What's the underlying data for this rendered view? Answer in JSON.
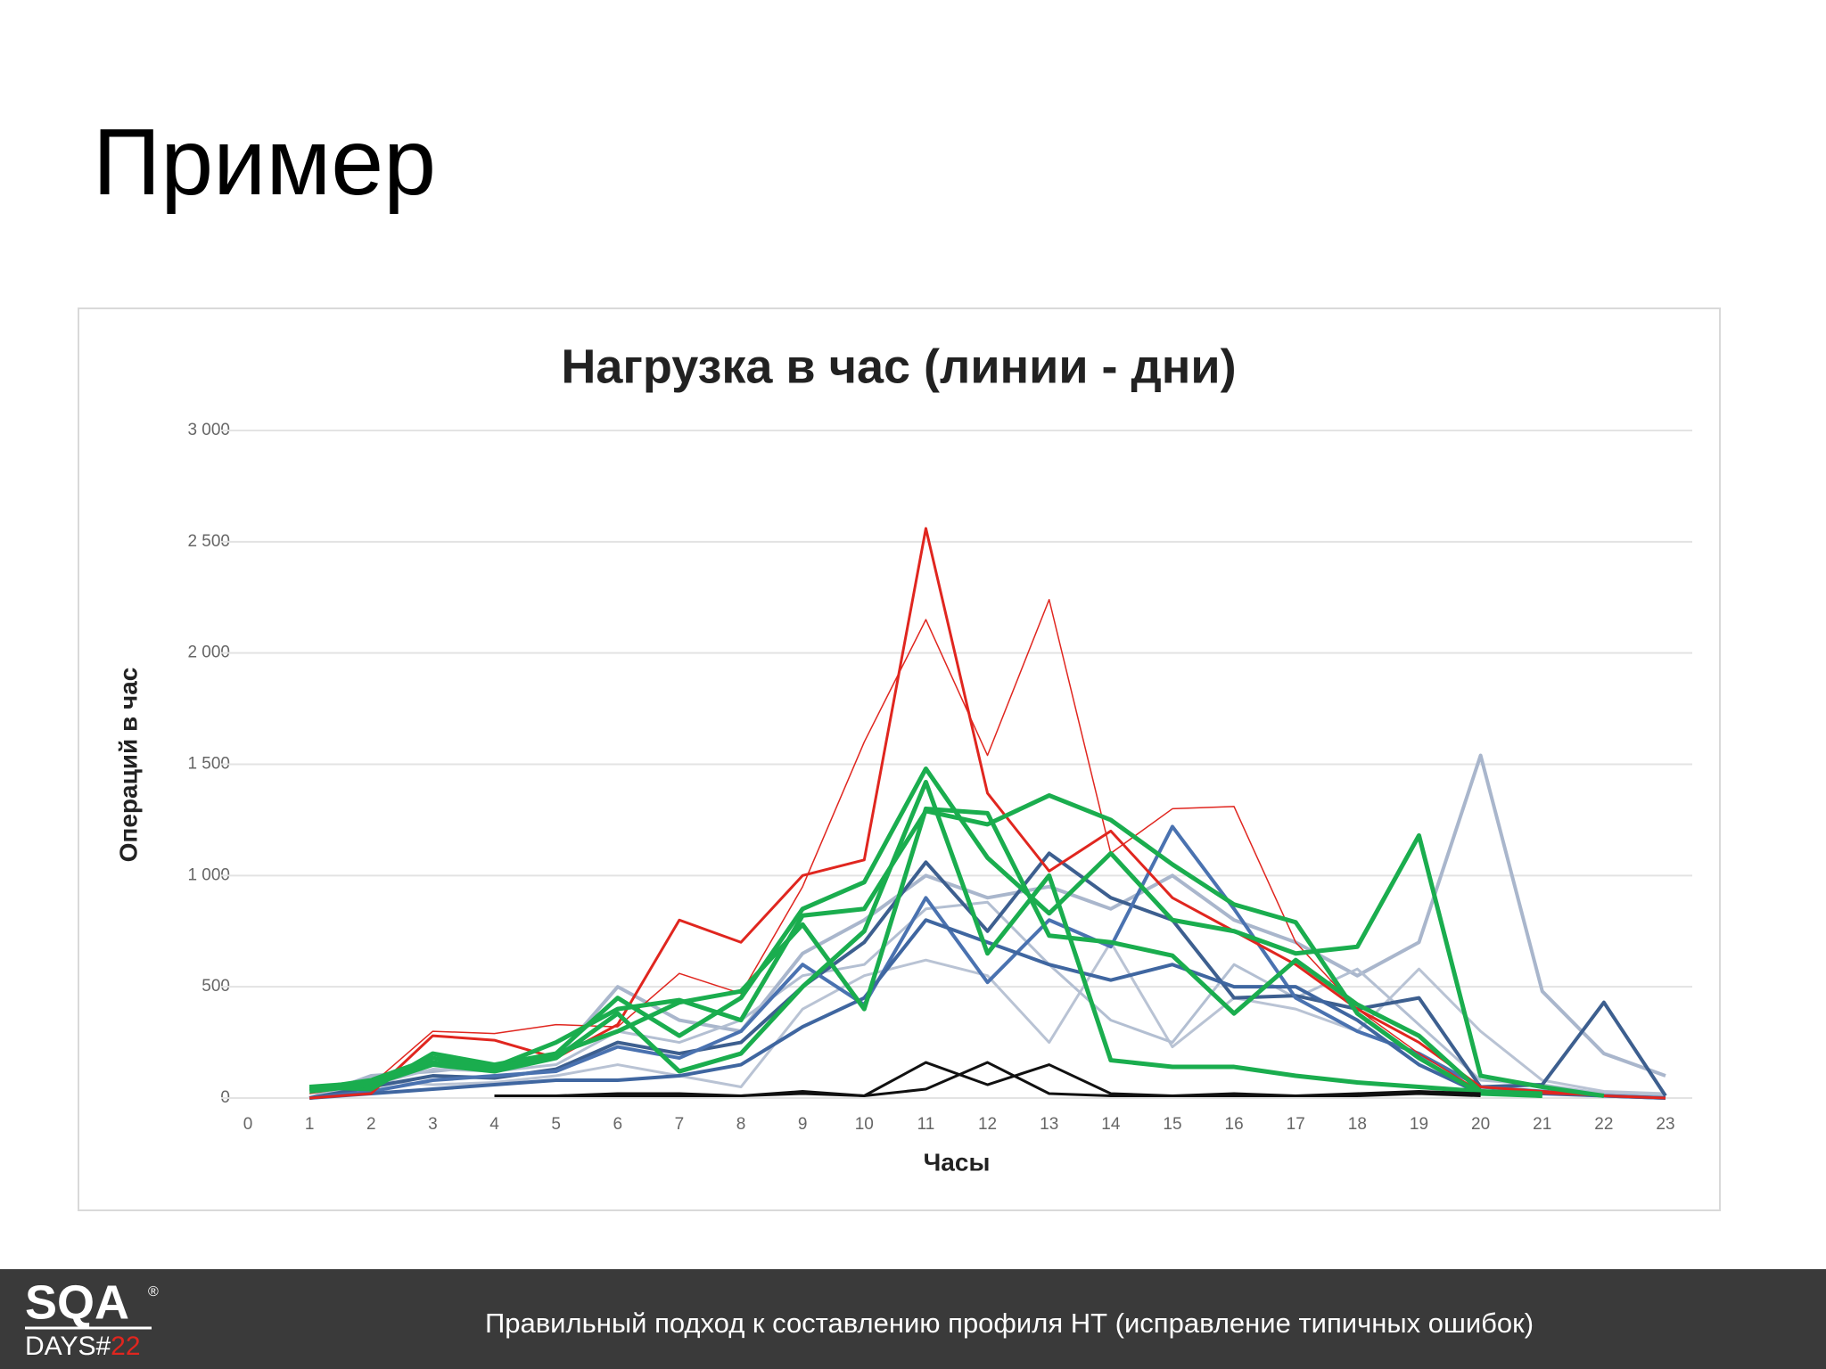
{
  "slide_title": "Пример",
  "footer": {
    "text": "Правильный подход к составлению профиля НТ (исправление типичных ошибок)"
  },
  "logo": {
    "top": "SQA",
    "bottom": "DAYS#",
    "number": "22",
    "mark": "®"
  },
  "chart_data": {
    "type": "line",
    "title": "Нагрузка в час (линии - дни)",
    "x_label": "Часы",
    "y_label": "Операций в час",
    "x": [
      0,
      1,
      2,
      3,
      4,
      5,
      6,
      7,
      8,
      9,
      10,
      11,
      12,
      13,
      14,
      15,
      16,
      17,
      18,
      19,
      20,
      21,
      22,
      23
    ],
    "xlim": [
      0,
      23
    ],
    "xticks": [
      0,
      1,
      2,
      3,
      4,
      5,
      6,
      7,
      8,
      9,
      10,
      11,
      12,
      13,
      14,
      15,
      16,
      17,
      18,
      19,
      20,
      21,
      22,
      23
    ],
    "ylim": [
      0,
      3000
    ],
    "yticks": [
      0,
      500,
      {
        "value": 1000,
        "label": "1 000"
      },
      {
        "value": 1500,
        "label": "1 500"
      },
      {
        "value": 2000,
        "label": "2 000"
      },
      {
        "value": 2500,
        "label": "2 500"
      },
      {
        "value": 3000,
        "label": "3 000"
      }
    ],
    "grid": true,
    "series": [
      {
        "color": "#a9b6cc",
        "line_width": 4,
        "values": [
          null,
          0,
          100,
          120,
          150,
          180,
          500,
          350,
          300,
          650,
          800,
          1000,
          900,
          950,
          850,
          1000,
          800,
          700,
          550,
          700,
          1540,
          480,
          200,
          100
        ]
      },
      {
        "color": "#b9c3d4",
        "line_width": 3,
        "values": [
          null,
          0,
          80,
          60,
          70,
          100,
          150,
          100,
          50,
          400,
          550,
          620,
          550,
          250,
          700,
          230,
          450,
          400,
          300,
          580,
          300,
          80,
          30,
          20
        ]
      },
      {
        "color": "#b3bfd2",
        "line_width": 3,
        "values": [
          null,
          0,
          60,
          130,
          120,
          150,
          300,
          250,
          350,
          550,
          600,
          850,
          880,
          600,
          350,
          250,
          600,
          450,
          580,
          330,
          80,
          60,
          20,
          10
        ]
      },
      {
        "color": "#3d5f8f",
        "line_width": 4,
        "values": [
          null,
          0,
          50,
          100,
          90,
          130,
          250,
          200,
          250,
          500,
          700,
          1060,
          750,
          1100,
          900,
          800,
          450,
          460,
          400,
          450,
          50,
          60,
          430,
          10
        ]
      },
      {
        "color": "#4a72b0",
        "line_width": 4,
        "values": [
          null,
          0,
          30,
          80,
          100,
          120,
          230,
          180,
          300,
          600,
          420,
          900,
          520,
          800,
          680,
          1220,
          850,
          450,
          300,
          200,
          50,
          30,
          10,
          0
        ]
      },
      {
        "color": "#3f66a0",
        "line_width": 4,
        "values": [
          null,
          0,
          20,
          40,
          60,
          80,
          80,
          100,
          150,
          320,
          450,
          800,
          700,
          600,
          530,
          600,
          500,
          500,
          350,
          150,
          20,
          20,
          10,
          0
        ]
      },
      {
        "color": "#e0261f",
        "line_width": 1.5,
        "values": [
          null,
          20,
          60,
          300,
          290,
          330,
          320,
          560,
          470,
          950,
          1600,
          2150,
          1540,
          2240,
          1100,
          1300,
          1310,
          700,
          400,
          200,
          30,
          20,
          10,
          0
        ]
      },
      {
        "color": "#e0261f",
        "line_width": 3,
        "values": [
          null,
          0,
          20,
          280,
          260,
          180,
          330,
          800,
          700,
          1000,
          1070,
          2560,
          1370,
          1020,
          1200,
          900,
          750,
          600,
          400,
          250,
          50,
          30,
          10,
          0
        ]
      },
      {
        "color": "#1aad4e",
        "line_width": 5,
        "values": [
          null,
          50,
          40,
          200,
          150,
          200,
          450,
          280,
          450,
          850,
          970,
          1480,
          1080,
          830,
          1100,
          800,
          750,
          650,
          680,
          1180,
          100,
          50,
          10,
          null
        ]
      },
      {
        "color": "#1aad4e",
        "line_width": 5,
        "values": [
          null,
          40,
          80,
          180,
          140,
          250,
          400,
          440,
          350,
          820,
          850,
          1290,
          1230,
          1360,
          1250,
          1050,
          870,
          790,
          380,
          180,
          20,
          10,
          null,
          null
        ]
      },
      {
        "color": "#1aad4e",
        "line_width": 5,
        "values": [
          null,
          30,
          60,
          150,
          120,
          180,
          380,
          120,
          200,
          500,
          750,
          1420,
          650,
          1000,
          170,
          140,
          140,
          100,
          70,
          50,
          30,
          20,
          null,
          null
        ]
      },
      {
        "color": "#1aad4e",
        "line_width": 5,
        "values": [
          null,
          50,
          70,
          160,
          130,
          200,
          300,
          430,
          480,
          780,
          400,
          1300,
          1280,
          730,
          700,
          640,
          380,
          620,
          420,
          280,
          30,
          10,
          null,
          null
        ]
      },
      {
        "color": "#111111",
        "line_width": 3,
        "values": [
          null,
          null,
          null,
          null,
          10,
          10,
          20,
          20,
          10,
          30,
          10,
          40,
          160,
          20,
          10,
          10,
          20,
          10,
          20,
          30,
          20,
          null,
          null,
          null
        ]
      },
      {
        "color": "#111111",
        "line_width": 3,
        "values": [
          null,
          null,
          null,
          null,
          10,
          10,
          10,
          10,
          10,
          20,
          10,
          160,
          60,
          150,
          20,
          10,
          10,
          10,
          10,
          20,
          10,
          null,
          null,
          null
        ]
      }
    ]
  }
}
